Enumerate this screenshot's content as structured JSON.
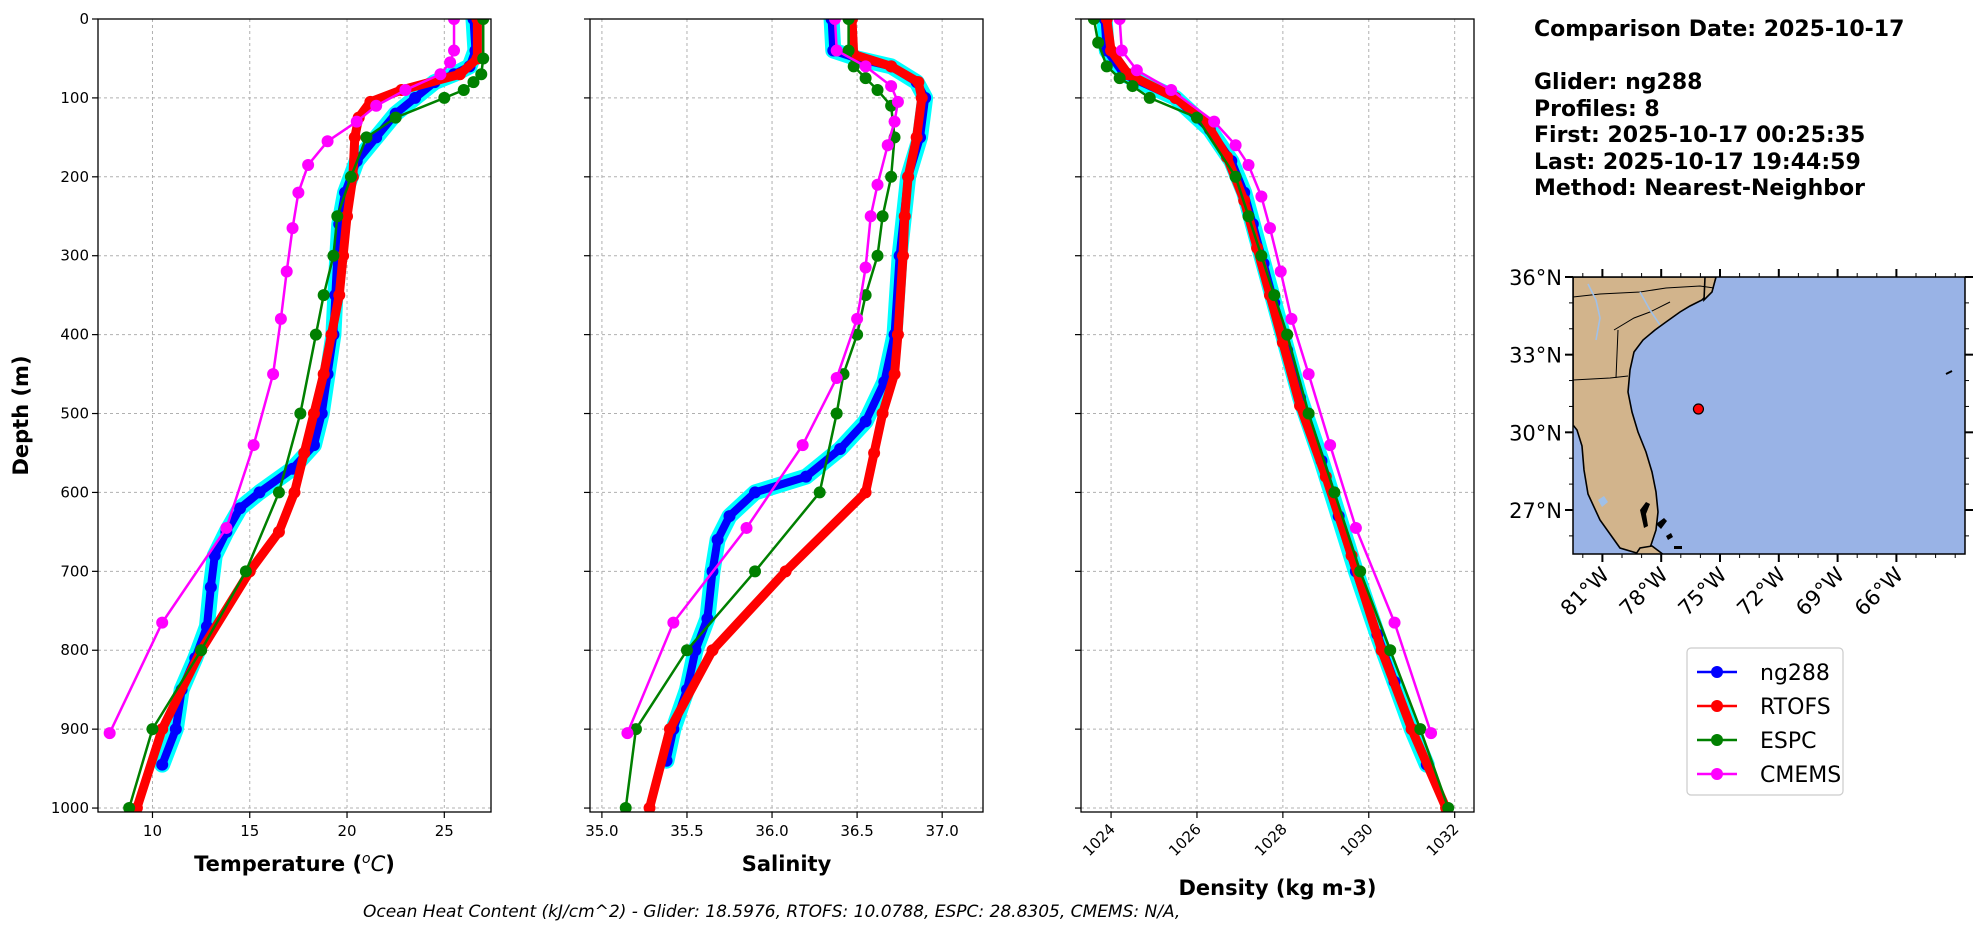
{
  "info": {
    "title": "Comparison Date: 2025-10-17",
    "lines": [
      "Glider: ng288",
      "Profiles: 8",
      "First: 2025-10-17 00:25:35",
      "Last: 2025-10-17 19:44:59",
      "Method: Nearest-Neighbor"
    ]
  },
  "footer": "Ocean Heat Content (kJ/cm^2) - Glider: 18.5976,  RTOFS: 10.0788,  ESPC: 28.8305,  CMEMS: N/A,",
  "colors": {
    "ng288": "#0000ff",
    "ng288_halo": "#00ffff",
    "RTOFS": "#ff0000",
    "ESPC": "#008000",
    "CMEMS": "#ff00ff",
    "land": "#d2b48c",
    "ocean": "#99b3e6",
    "grid": "#b0b0b0"
  },
  "legend": {
    "placement": "below-map",
    "entries": [
      "ng288",
      "RTOFS",
      "ESPC",
      "CMEMS"
    ]
  },
  "chart_data": [
    {
      "type": "line",
      "xlabel": "Temperature (°C)",
      "ylabel": "Depth (m)",
      "xlim": [
        7.2,
        27.4
      ],
      "ylim": [
        1005,
        0
      ],
      "xticks": [
        10,
        15,
        20,
        25
      ],
      "yticks": [
        0,
        100,
        200,
        300,
        400,
        500,
        600,
        700,
        800,
        900,
        1000
      ],
      "grid": true,
      "series": [
        {
          "name": "ng288",
          "points": [
            [
              26.5,
              0
            ],
            [
              26.6,
              40
            ],
            [
              26.3,
              60
            ],
            [
              25.5,
              70
            ],
            [
              24.5,
              80
            ],
            [
              23.5,
              100
            ],
            [
              22.5,
              120
            ],
            [
              21.5,
              150
            ],
            [
              20.5,
              180
            ],
            [
              19.9,
              220
            ],
            [
              19.6,
              260
            ],
            [
              19.5,
              300
            ],
            [
              19.4,
              350
            ],
            [
              19.3,
              400
            ],
            [
              19.0,
              450
            ],
            [
              18.7,
              500
            ],
            [
              18.3,
              540
            ],
            [
              17.2,
              570
            ],
            [
              15.5,
              600
            ],
            [
              14.5,
              620
            ],
            [
              13.8,
              650
            ],
            [
              13.2,
              680
            ],
            [
              13.0,
              720
            ],
            [
              12.8,
              770
            ],
            [
              12.2,
              810
            ],
            [
              11.5,
              850
            ],
            [
              11.2,
              900
            ],
            [
              10.5,
              945
            ]
          ]
        },
        {
          "name": "RTOFS",
          "points": [
            [
              26.7,
              0
            ],
            [
              26.7,
              50
            ],
            [
              25.8,
              70
            ],
            [
              22.8,
              90
            ],
            [
              21.2,
              105
            ],
            [
              20.6,
              125
            ],
            [
              20.4,
              150
            ],
            [
              20.3,
              200
            ],
            [
              20.0,
              250
            ],
            [
              19.8,
              300
            ],
            [
              19.6,
              350
            ],
            [
              19.2,
              400
            ],
            [
              18.8,
              450
            ],
            [
              18.3,
              500
            ],
            [
              17.8,
              550
            ],
            [
              17.3,
              600
            ],
            [
              16.5,
              650
            ],
            [
              15.0,
              700
            ],
            [
              12.5,
              800
            ],
            [
              10.5,
              900
            ],
            [
              9.2,
              1000
            ]
          ]
        },
        {
          "name": "ESPC",
          "points": [
            [
              27.0,
              0
            ],
            [
              27.0,
              50
            ],
            [
              26.9,
              70
            ],
            [
              26.5,
              80
            ],
            [
              26.0,
              90
            ],
            [
              25.0,
              100
            ],
            [
              22.5,
              125
            ],
            [
              21.0,
              150
            ],
            [
              20.2,
              200
            ],
            [
              19.5,
              250
            ],
            [
              19.3,
              300
            ],
            [
              18.8,
              350
            ],
            [
              18.4,
              400
            ],
            [
              17.6,
              500
            ],
            [
              16.5,
              600
            ],
            [
              14.8,
              700
            ],
            [
              12.5,
              800
            ],
            [
              10.0,
              900
            ],
            [
              8.8,
              1000
            ]
          ]
        },
        {
          "name": "CMEMS",
          "points": [
            [
              25.5,
              0
            ],
            [
              25.5,
              40
            ],
            [
              25.3,
              55
            ],
            [
              24.8,
              70
            ],
            [
              23.0,
              90
            ],
            [
              21.5,
              110
            ],
            [
              20.5,
              130
            ],
            [
              19.0,
              155
            ],
            [
              18.0,
              185
            ],
            [
              17.5,
              220
            ],
            [
              17.2,
              265
            ],
            [
              16.9,
              320
            ],
            [
              16.6,
              380
            ],
            [
              16.2,
              450
            ],
            [
              15.2,
              540
            ],
            [
              13.8,
              645
            ],
            [
              10.5,
              765
            ],
            [
              7.8,
              905
            ]
          ]
        }
      ]
    },
    {
      "type": "line",
      "xlabel": "Salinity",
      "ylabel": "",
      "xlim": [
        34.93,
        37.24
      ],
      "ylim": [
        1005,
        0
      ],
      "xticks": [
        35.0,
        35.5,
        36.0,
        36.5,
        37.0
      ],
      "yticks": [
        0,
        100,
        200,
        300,
        400,
        500,
        600,
        700,
        800,
        900,
        1000
      ],
      "grid": true,
      "series": [
        {
          "name": "ng288",
          "points": [
            [
              36.35,
              0
            ],
            [
              36.36,
              40
            ],
            [
              36.5,
              50
            ],
            [
              36.7,
              60
            ],
            [
              36.85,
              80
            ],
            [
              36.9,
              100
            ],
            [
              36.87,
              150
            ],
            [
              36.8,
              200
            ],
            [
              36.75,
              300
            ],
            [
              36.72,
              400
            ],
            [
              36.66,
              460
            ],
            [
              36.55,
              510
            ],
            [
              36.4,
              545
            ],
            [
              36.2,
              580
            ],
            [
              35.9,
              600
            ],
            [
              35.75,
              630
            ],
            [
              35.68,
              660
            ],
            [
              35.65,
              700
            ],
            [
              35.62,
              760
            ],
            [
              35.55,
              800
            ],
            [
              35.5,
              850
            ],
            [
              35.42,
              900
            ],
            [
              35.38,
              940
            ]
          ]
        },
        {
          "name": "RTOFS",
          "points": [
            [
              36.47,
              0
            ],
            [
              36.48,
              45
            ],
            [
              36.7,
              60
            ],
            [
              36.86,
              80
            ],
            [
              36.88,
              100
            ],
            [
              36.85,
              150
            ],
            [
              36.8,
              200
            ],
            [
              36.78,
              250
            ],
            [
              36.77,
              300
            ],
            [
              36.74,
              400
            ],
            [
              36.72,
              450
            ],
            [
              36.65,
              500
            ],
            [
              36.6,
              550
            ],
            [
              36.55,
              600
            ],
            [
              36.08,
              700
            ],
            [
              35.65,
              800
            ],
            [
              35.4,
              900
            ],
            [
              35.28,
              1000
            ]
          ]
        },
        {
          "name": "ESPC",
          "points": [
            [
              36.45,
              0
            ],
            [
              36.45,
              40
            ],
            [
              36.48,
              60
            ],
            [
              36.55,
              75
            ],
            [
              36.62,
              90
            ],
            [
              36.7,
              110
            ],
            [
              36.72,
              150
            ],
            [
              36.7,
              200
            ],
            [
              36.65,
              250
            ],
            [
              36.62,
              300
            ],
            [
              36.55,
              350
            ],
            [
              36.5,
              400
            ],
            [
              36.42,
              450
            ],
            [
              36.38,
              500
            ],
            [
              36.28,
              600
            ],
            [
              35.9,
              700
            ],
            [
              35.5,
              800
            ],
            [
              35.2,
              900
            ],
            [
              35.14,
              1000
            ]
          ]
        },
        {
          "name": "CMEMS",
          "points": [
            [
              36.37,
              0
            ],
            [
              36.38,
              40
            ],
            [
              36.55,
              60
            ],
            [
              36.7,
              85
            ],
            [
              36.74,
              105
            ],
            [
              36.72,
              130
            ],
            [
              36.68,
              160
            ],
            [
              36.62,
              210
            ],
            [
              36.58,
              250
            ],
            [
              36.55,
              315
            ],
            [
              36.5,
              380
            ],
            [
              36.38,
              455
            ],
            [
              36.18,
              540
            ],
            [
              35.85,
              645
            ],
            [
              35.42,
              765
            ],
            [
              35.15,
              905
            ]
          ]
        }
      ]
    },
    {
      "type": "line",
      "xlabel": "Density (kg m-3)",
      "ylabel": "",
      "xlim": [
        1023.3,
        1032.45
      ],
      "ylim": [
        1005,
        0
      ],
      "xticks": [
        1024,
        1026,
        1028,
        1030,
        1032
      ],
      "yticks": [
        0,
        100,
        200,
        300,
        400,
        500,
        600,
        700,
        800,
        900,
        1000
      ],
      "grid": true,
      "series": [
        {
          "name": "ng288",
          "points": [
            [
              1023.85,
              0
            ],
            [
              1023.9,
              40
            ],
            [
              1024.3,
              70
            ],
            [
              1025.5,
              100
            ],
            [
              1026.3,
              140
            ],
            [
              1026.8,
              180
            ],
            [
              1027.1,
              220
            ],
            [
              1027.3,
              260
            ],
            [
              1027.55,
              310
            ],
            [
              1027.8,
              360
            ],
            [
              1028.1,
              420
            ],
            [
              1028.4,
              480
            ],
            [
              1028.9,
              560
            ],
            [
              1029.3,
              630
            ],
            [
              1029.7,
              700
            ],
            [
              1030.2,
              780
            ],
            [
              1030.6,
              840
            ],
            [
              1031.0,
              900
            ],
            [
              1031.35,
              945
            ]
          ]
        },
        {
          "name": "RTOFS",
          "points": [
            [
              1023.9,
              0
            ],
            [
              1024.0,
              40
            ],
            [
              1024.4,
              70
            ],
            [
              1025.5,
              100
            ],
            [
              1026.2,
              130
            ],
            [
              1026.7,
              175
            ],
            [
              1027.1,
              230
            ],
            [
              1027.4,
              290
            ],
            [
              1027.7,
              350
            ],
            [
              1028.0,
              410
            ],
            [
              1028.4,
              490
            ],
            [
              1029.0,
              580
            ],
            [
              1029.6,
              680
            ],
            [
              1030.3,
              800
            ],
            [
              1031.0,
              900
            ],
            [
              1031.8,
              1000
            ]
          ]
        },
        {
          "name": "ESPC",
          "points": [
            [
              1023.6,
              0
            ],
            [
              1023.7,
              30
            ],
            [
              1023.9,
              60
            ],
            [
              1024.2,
              75
            ],
            [
              1024.5,
              85
            ],
            [
              1024.9,
              100
            ],
            [
              1026.0,
              125
            ],
            [
              1026.9,
              200
            ],
            [
              1027.2,
              250
            ],
            [
              1027.5,
              300
            ],
            [
              1027.8,
              350
            ],
            [
              1028.1,
              400
            ],
            [
              1028.6,
              500
            ],
            [
              1029.2,
              600
            ],
            [
              1029.8,
              700
            ],
            [
              1030.5,
              800
            ],
            [
              1031.2,
              900
            ],
            [
              1031.85,
              1000
            ]
          ]
        },
        {
          "name": "CMEMS",
          "points": [
            [
              1024.2,
              0
            ],
            [
              1024.25,
              40
            ],
            [
              1024.6,
              65
            ],
            [
              1025.4,
              90
            ],
            [
              1026.4,
              130
            ],
            [
              1026.9,
              160
            ],
            [
              1027.2,
              185
            ],
            [
              1027.5,
              225
            ],
            [
              1027.7,
              265
            ],
            [
              1027.95,
              320
            ],
            [
              1028.2,
              380
            ],
            [
              1028.6,
              450
            ],
            [
              1029.1,
              540
            ],
            [
              1029.7,
              645
            ],
            [
              1030.6,
              765
            ],
            [
              1031.45,
              905
            ]
          ]
        }
      ]
    },
    {
      "type": "map",
      "lon_range": [
        -82.5,
        -62.5
      ],
      "lat_range": [
        25.3,
        36
      ],
      "lon_ticks": [
        "81°W",
        "78°W",
        "75°W",
        "72°W",
        "69°W",
        "66°W"
      ],
      "lon_tick_values": [
        -81,
        -78,
        -75,
        -72,
        -69,
        -66
      ],
      "lat_ticks": [
        "36°N",
        "33°N",
        "30°N",
        "27°N"
      ],
      "lat_tick_values": [
        36,
        33,
        30,
        27
      ],
      "marker": {
        "lon": -76.1,
        "lat": 30.9,
        "color": "#ff0000"
      }
    }
  ]
}
